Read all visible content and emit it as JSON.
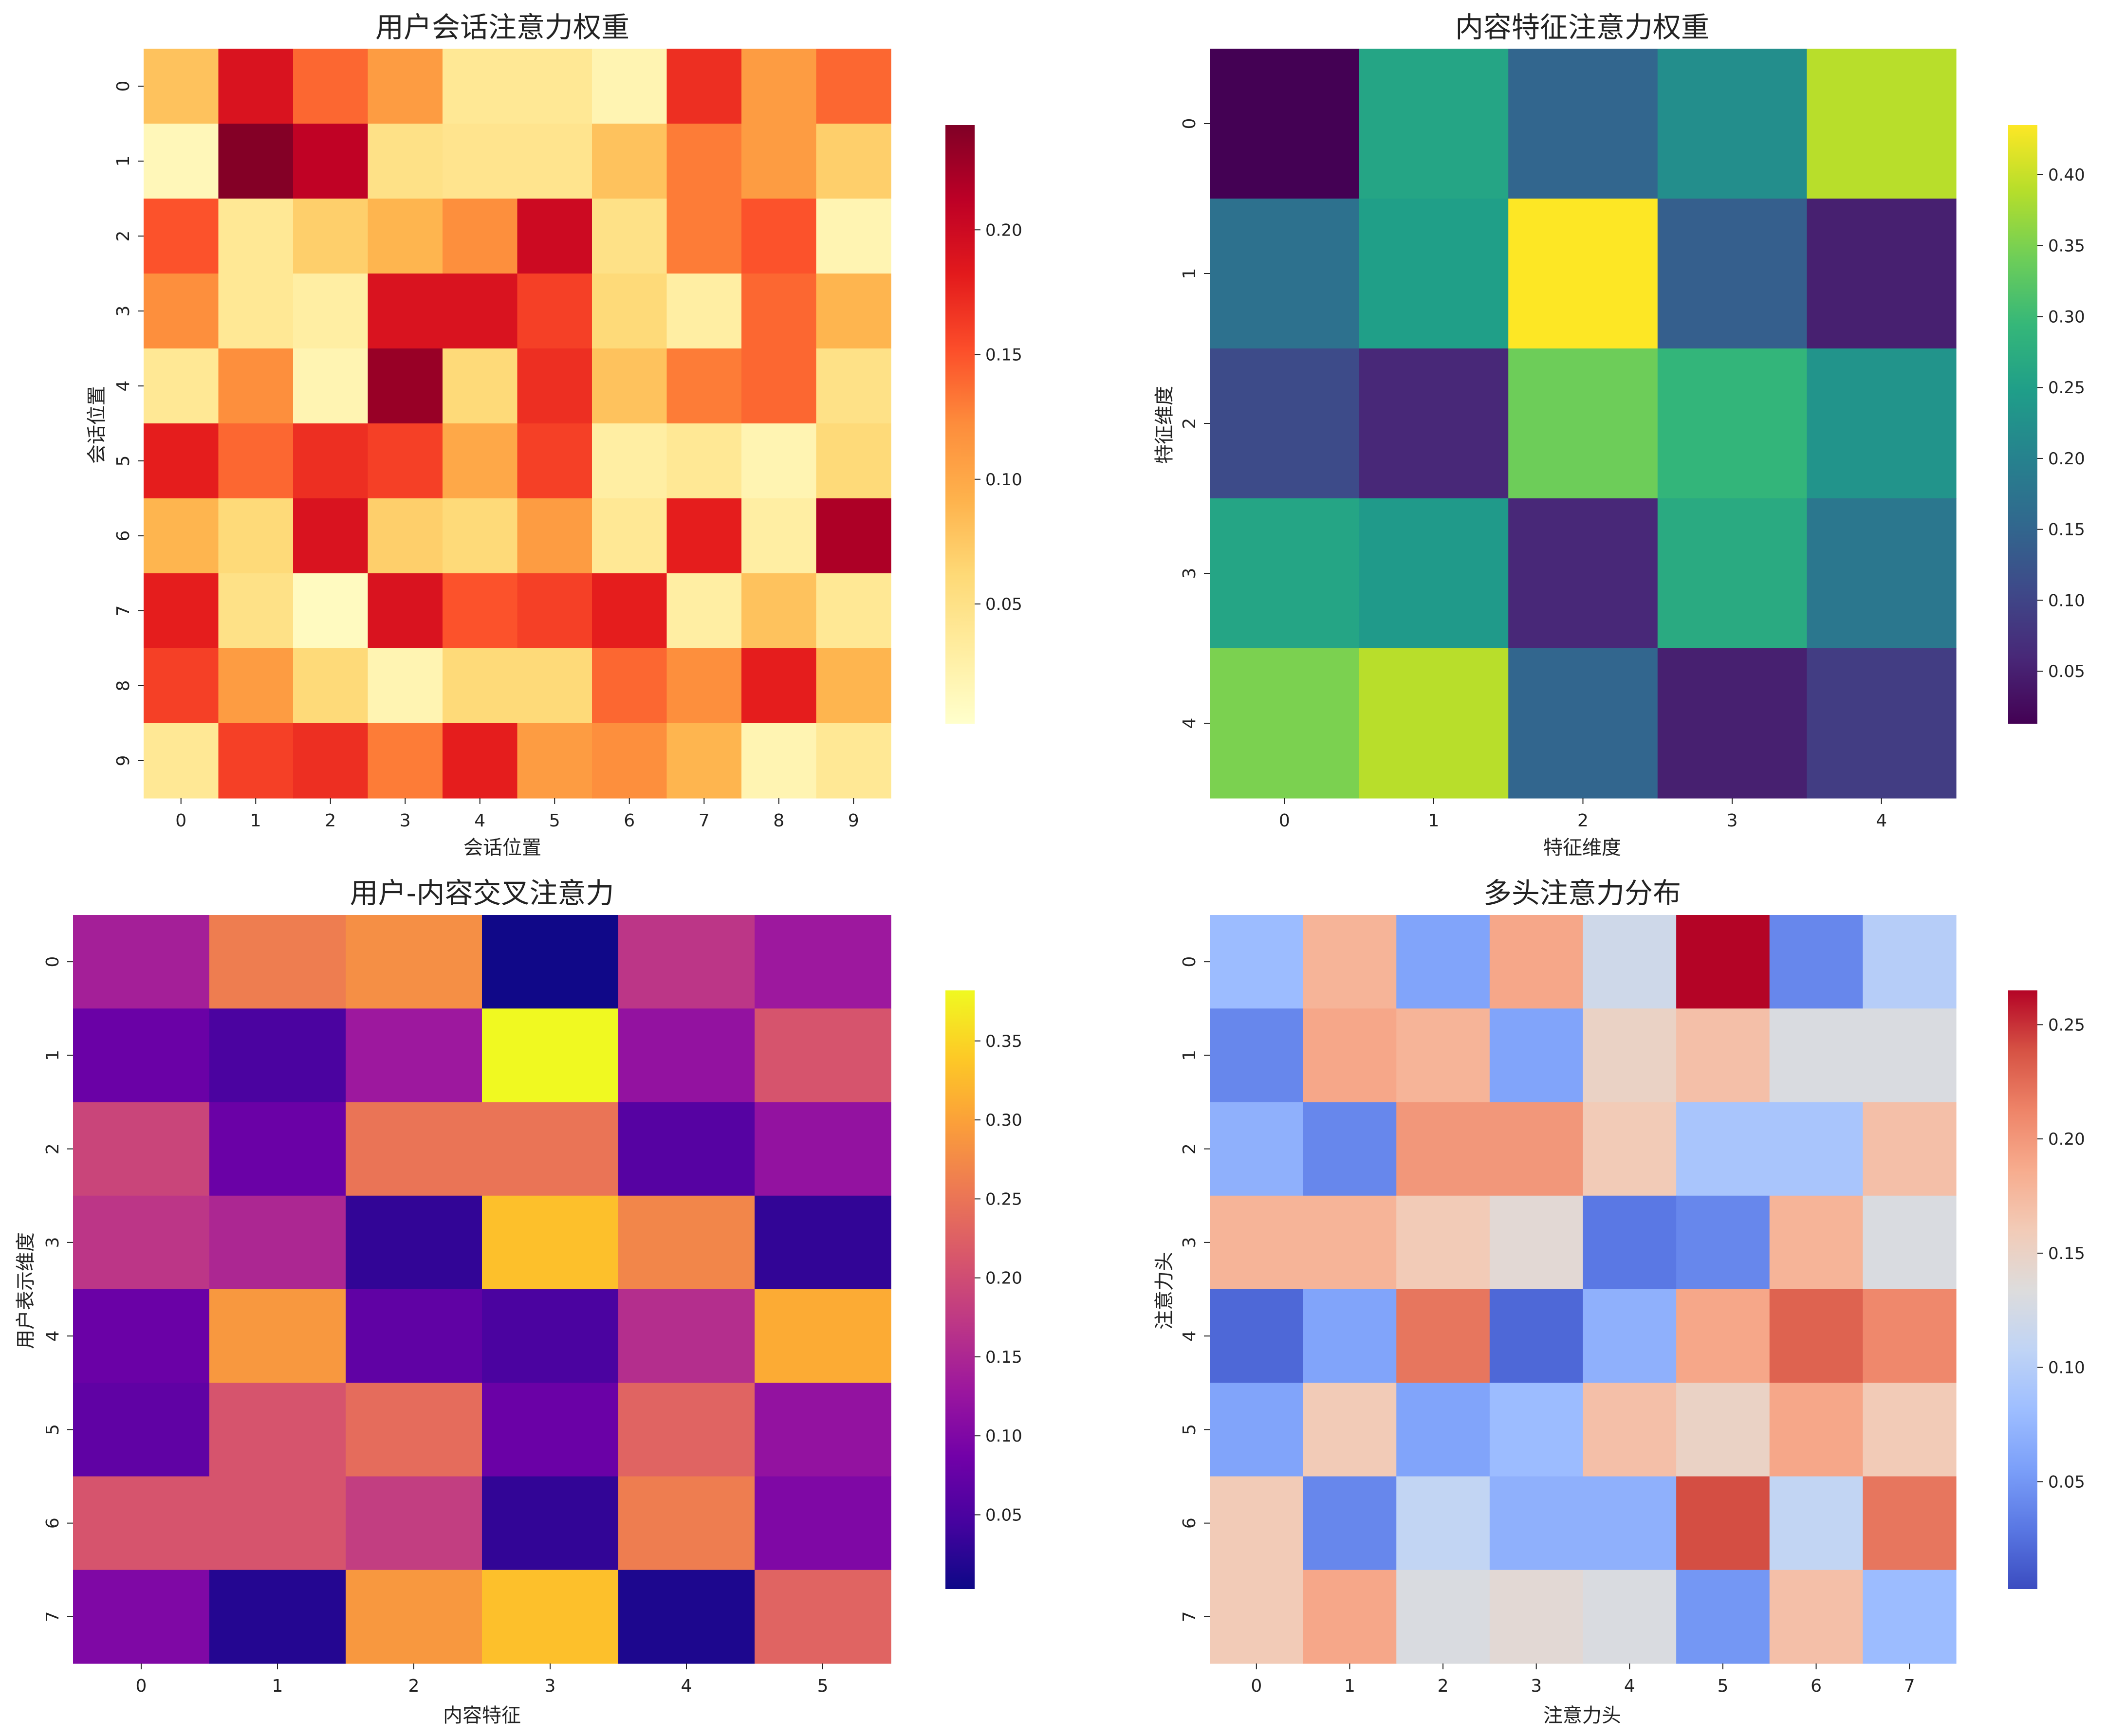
{
  "chart_data": [
    {
      "type": "heatmap",
      "title": "用户会话注意力权重",
      "xlabel": "会话位置",
      "ylabel": "会话位置",
      "x_ticks": [
        "0",
        "1",
        "2",
        "3",
        "4",
        "5",
        "6",
        "7",
        "8",
        "9"
      ],
      "y_ticks": [
        "0",
        "1",
        "2",
        "3",
        "4",
        "5",
        "6",
        "7",
        "8",
        "9"
      ],
      "colormap": "YlOrRd",
      "vmin": 0.002,
      "vmax": 0.242,
      "colorbar_ticks": [
        "0.05",
        "0.10",
        "0.15",
        "0.20"
      ],
      "values": [
        [
          0.08,
          0.19,
          0.14,
          0.11,
          0.04,
          0.04,
          0.02,
          0.17,
          0.11,
          0.14
        ],
        [
          0.015,
          0.24,
          0.21,
          0.05,
          0.045,
          0.045,
          0.08,
          0.13,
          0.11,
          0.07
        ],
        [
          0.15,
          0.04,
          0.07,
          0.09,
          0.12,
          0.2,
          0.05,
          0.13,
          0.15,
          0.02
        ],
        [
          0.12,
          0.04,
          0.03,
          0.19,
          0.19,
          0.16,
          0.06,
          0.03,
          0.14,
          0.09
        ],
        [
          0.04,
          0.12,
          0.02,
          0.23,
          0.06,
          0.17,
          0.08,
          0.13,
          0.14,
          0.05
        ],
        [
          0.18,
          0.14,
          0.17,
          0.16,
          0.1,
          0.16,
          0.03,
          0.04,
          0.02,
          0.06
        ],
        [
          0.09,
          0.06,
          0.19,
          0.07,
          0.06,
          0.11,
          0.04,
          0.18,
          0.03,
          0.22
        ],
        [
          0.18,
          0.05,
          0.01,
          0.19,
          0.15,
          0.16,
          0.18,
          0.03,
          0.08,
          0.04
        ],
        [
          0.16,
          0.11,
          0.06,
          0.02,
          0.06,
          0.06,
          0.14,
          0.12,
          0.18,
          0.09
        ],
        [
          0.04,
          0.16,
          0.17,
          0.13,
          0.18,
          0.11,
          0.12,
          0.09,
          0.02,
          0.04
        ]
      ]
    },
    {
      "type": "heatmap",
      "title": "内容特征注意力权重",
      "xlabel": "特征维度",
      "ylabel": "特征维度",
      "x_ticks": [
        "0",
        "1",
        "2",
        "3",
        "4"
      ],
      "y_ticks": [
        "0",
        "1",
        "2",
        "3",
        "4"
      ],
      "colormap": "viridis",
      "vmin": 0.013,
      "vmax": 0.435,
      "colorbar_ticks": [
        "0.05",
        "0.10",
        "0.15",
        "0.20",
        "0.25",
        "0.30",
        "0.35",
        "0.40"
      ],
      "values": [
        [
          0.013,
          0.26,
          0.15,
          0.22,
          0.39
        ],
        [
          0.17,
          0.25,
          0.435,
          0.14,
          0.05
        ],
        [
          0.11,
          0.06,
          0.34,
          0.29,
          0.23
        ],
        [
          0.26,
          0.24,
          0.06,
          0.27,
          0.18
        ],
        [
          0.35,
          0.39,
          0.15,
          0.05,
          0.09
        ]
      ]
    },
    {
      "type": "heatmap",
      "title": "用户-内容交叉注意力",
      "xlabel": "内容特征",
      "ylabel": "用户表示维度",
      "x_ticks": [
        "0",
        "1",
        "2",
        "3",
        "4",
        "5"
      ],
      "y_ticks": [
        "0",
        "1",
        "2",
        "3",
        "4",
        "5",
        "6",
        "7"
      ],
      "colormap": "plasma",
      "vmin": 0.003,
      "vmax": 0.382,
      "colorbar_ticks": [
        "0.05",
        "0.10",
        "0.15",
        "0.20",
        "0.25",
        "0.30",
        "0.35"
      ],
      "values": [
        [
          0.14,
          0.26,
          0.28,
          0.005,
          0.17,
          0.13
        ],
        [
          0.08,
          0.05,
          0.13,
          0.382,
          0.12,
          0.21
        ],
        [
          0.19,
          0.08,
          0.25,
          0.25,
          0.06,
          0.12
        ],
        [
          0.17,
          0.15,
          0.03,
          0.33,
          0.27,
          0.03
        ],
        [
          0.08,
          0.29,
          0.07,
          0.05,
          0.16,
          0.31
        ],
        [
          0.07,
          0.21,
          0.24,
          0.08,
          0.23,
          0.12
        ],
        [
          0.21,
          0.21,
          0.18,
          0.03,
          0.26,
          0.1
        ],
        [
          0.1,
          0.02,
          0.29,
          0.33,
          0.015,
          0.23
        ]
      ]
    },
    {
      "type": "heatmap",
      "title": "多头注意力分布",
      "xlabel": "注意力头",
      "ylabel": "注意力头",
      "x_ticks": [
        "0",
        "1",
        "2",
        "3",
        "4",
        "5",
        "6",
        "7"
      ],
      "y_ticks": [
        "0",
        "1",
        "2",
        "3",
        "4",
        "5",
        "6",
        "7"
      ],
      "colormap": "coolwarm",
      "vmin": 0.003,
      "vmax": 0.265,
      "colorbar_ticks": [
        "0.05",
        "0.10",
        "0.15",
        "0.20",
        "0.25"
      ],
      "values": [
        [
          0.08,
          0.18,
          0.06,
          0.19,
          0.12,
          0.265,
          0.04,
          0.1
        ],
        [
          0.04,
          0.19,
          0.18,
          0.06,
          0.15,
          0.17,
          0.13,
          0.13
        ],
        [
          0.07,
          0.04,
          0.2,
          0.2,
          0.16,
          0.09,
          0.09,
          0.17
        ],
        [
          0.18,
          0.18,
          0.16,
          0.14,
          0.03,
          0.04,
          0.18,
          0.13
        ],
        [
          0.02,
          0.06,
          0.22,
          0.02,
          0.07,
          0.19,
          0.23,
          0.21
        ],
        [
          0.06,
          0.16,
          0.06,
          0.08,
          0.17,
          0.15,
          0.19,
          0.16
        ],
        [
          0.16,
          0.04,
          0.11,
          0.07,
          0.07,
          0.24,
          0.11,
          0.22
        ],
        [
          0.16,
          0.19,
          0.13,
          0.14,
          0.13,
          0.05,
          0.17,
          0.08
        ]
      ]
    }
  ]
}
